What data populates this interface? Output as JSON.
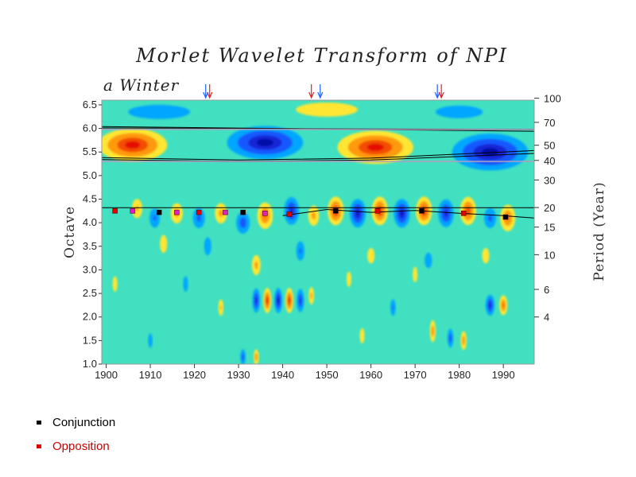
{
  "chart_data": {
    "type": "heatmap",
    "title": "Morlet Wavelet Transform of NPI",
    "subtitle": "a Winter",
    "xlabel": "",
    "ylabel": "Octave",
    "y2label": "Period (Year)",
    "xlim": [
      1899,
      1997
    ],
    "ylim": [
      1.0,
      6.6
    ],
    "x_ticks": [
      1900,
      1910,
      1920,
      1930,
      1940,
      1950,
      1960,
      1970,
      1980,
      1990
    ],
    "y_ticks": [
      1.0,
      1.5,
      2.0,
      2.5,
      3.0,
      3.5,
      4.0,
      4.5,
      5.0,
      5.5,
      6.0,
      6.5
    ],
    "y_tick_labels": [
      "1.0",
      "1.5",
      "2.0",
      "2.5",
      "3.0",
      "3.5",
      "4.0",
      "4.5",
      "5.0",
      "5.5",
      "6.0",
      "6.5"
    ],
    "period_ticks": [
      4,
      6,
      10,
      15,
      20,
      30,
      40,
      50,
      70,
      100
    ],
    "period_tick_labels": [
      "4",
      "6",
      "10",
      "15",
      "20",
      "30",
      "40",
      "50",
      "70",
      "100"
    ],
    "colormap": [
      "#00009a",
      "#1f3fff",
      "#00c0ff",
      "#7fffbf",
      "#ffff40",
      "#ff8000",
      "#e00000"
    ],
    "positive_color": "#e00000",
    "negative_color": "#1f3fff",
    "background_color": "#40e0c0",
    "top_arrows": [
      {
        "year": 1923,
        "colors": [
          "#2060ff",
          "#e02020"
        ]
      },
      {
        "year": 1946.5,
        "colors": [
          "#e02020"
        ]
      },
      {
        "year": 1948.5,
        "colors": [
          "#2060ff"
        ]
      },
      {
        "year": 1975.5,
        "colors": [
          "#2060ff",
          "#e02020"
        ]
      }
    ],
    "markers": [
      {
        "year": 1902,
        "octave": 4.25,
        "type": "opposition"
      },
      {
        "year": 1906,
        "octave": 4.25,
        "type": "opposition-magenta"
      },
      {
        "year": 1912,
        "octave": 4.22,
        "type": "conjunction"
      },
      {
        "year": 1916,
        "octave": 4.22,
        "type": "opposition-magenta"
      },
      {
        "year": 1921,
        "octave": 4.22,
        "type": "opposition"
      },
      {
        "year": 1927,
        "octave": 4.22,
        "type": "opposition-magenta"
      },
      {
        "year": 1931,
        "octave": 4.22,
        "type": "conjunction"
      },
      {
        "year": 1936,
        "octave": 4.2,
        "type": "opposition-magenta"
      },
      {
        "year": 1941.5,
        "octave": 4.18,
        "type": "opposition"
      },
      {
        "year": 1952,
        "octave": 4.25,
        "type": "conjunction"
      },
      {
        "year": 1961.5,
        "octave": 4.25,
        "type": "opposition"
      },
      {
        "year": 1971.5,
        "octave": 4.25,
        "type": "conjunction"
      },
      {
        "year": 1981,
        "octave": 4.2,
        "type": "opposition"
      },
      {
        "year": 1990.5,
        "octave": 4.12,
        "type": "conjunction"
      }
    ],
    "blobs": [
      {
        "x": 1906,
        "y": 5.65,
        "rx": 10,
        "ry": 0.45,
        "v": 1.0
      },
      {
        "x": 1936,
        "y": 5.7,
        "rx": 11,
        "ry": 0.45,
        "v": -1.0
      },
      {
        "x": 1961,
        "y": 5.6,
        "rx": 11,
        "ry": 0.45,
        "v": 1.0
      },
      {
        "x": 1987,
        "y": 5.5,
        "rx": 11,
        "ry": 0.5,
        "v": -1.0
      },
      {
        "x": 1912,
        "y": 6.35,
        "rx": 14,
        "ry": 0.3,
        "v": -0.35
      },
      {
        "x": 1950,
        "y": 6.4,
        "rx": 14,
        "ry": 0.3,
        "v": 0.35
      },
      {
        "x": 1980,
        "y": 6.35,
        "rx": 12,
        "ry": 0.3,
        "v": -0.3
      },
      {
        "x": 1907,
        "y": 4.3,
        "rx": 2.0,
        "ry": 0.35,
        "v": 0.45
      },
      {
        "x": 1911,
        "y": 4.1,
        "rx": 2.0,
        "ry": 0.35,
        "v": -0.45
      },
      {
        "x": 1916,
        "y": 4.2,
        "rx": 2.2,
        "ry": 0.35,
        "v": 0.5
      },
      {
        "x": 1921,
        "y": 4.1,
        "rx": 2.2,
        "ry": 0.35,
        "v": -0.5
      },
      {
        "x": 1926,
        "y": 4.2,
        "rx": 2.2,
        "ry": 0.35,
        "v": 0.5
      },
      {
        "x": 1931,
        "y": 4.0,
        "rx": 2.3,
        "ry": 0.35,
        "v": -0.6
      },
      {
        "x": 1936,
        "y": 4.15,
        "rx": 2.5,
        "ry": 0.4,
        "v": 0.7
      },
      {
        "x": 1942,
        "y": 4.25,
        "rx": 2.3,
        "ry": 0.4,
        "v": -0.8
      },
      {
        "x": 1947,
        "y": 4.15,
        "rx": 2.0,
        "ry": 0.35,
        "v": 0.5
      },
      {
        "x": 1952,
        "y": 4.25,
        "rx": 2.4,
        "ry": 0.4,
        "v": 0.9
      },
      {
        "x": 1957,
        "y": 4.2,
        "rx": 2.4,
        "ry": 0.4,
        "v": -0.9
      },
      {
        "x": 1962,
        "y": 4.25,
        "rx": 2.4,
        "ry": 0.4,
        "v": 0.9
      },
      {
        "x": 1967,
        "y": 4.2,
        "rx": 2.4,
        "ry": 0.4,
        "v": -0.9
      },
      {
        "x": 1972,
        "y": 4.25,
        "rx": 2.4,
        "ry": 0.4,
        "v": 0.9
      },
      {
        "x": 1977,
        "y": 4.2,
        "rx": 2.4,
        "ry": 0.4,
        "v": -0.8
      },
      {
        "x": 1982,
        "y": 4.25,
        "rx": 2.4,
        "ry": 0.4,
        "v": 0.85
      },
      {
        "x": 1987,
        "y": 4.1,
        "rx": 2.2,
        "ry": 0.35,
        "v": -0.5
      },
      {
        "x": 1991,
        "y": 4.1,
        "rx": 2.4,
        "ry": 0.4,
        "v": 0.7
      },
      {
        "x": 1913,
        "y": 3.55,
        "rx": 1.5,
        "ry": 0.35,
        "v": 0.4
      },
      {
        "x": 1923,
        "y": 3.5,
        "rx": 1.5,
        "ry": 0.35,
        "v": -0.4
      },
      {
        "x": 1934,
        "y": 3.1,
        "rx": 1.6,
        "ry": 0.35,
        "v": 0.5
      },
      {
        "x": 1944,
        "y": 3.4,
        "rx": 1.6,
        "ry": 0.35,
        "v": -0.45
      },
      {
        "x": 1960,
        "y": 3.3,
        "rx": 1.5,
        "ry": 0.3,
        "v": 0.4
      },
      {
        "x": 1973,
        "y": 3.2,
        "rx": 1.5,
        "ry": 0.3,
        "v": -0.4
      },
      {
        "x": 1986,
        "y": 3.3,
        "rx": 1.5,
        "ry": 0.3,
        "v": 0.4
      },
      {
        "x": 1934,
        "y": 2.35,
        "rx": 1.2,
        "ry": 0.35,
        "v": -0.8
      },
      {
        "x": 1936.5,
        "y": 2.35,
        "rx": 1.2,
        "ry": 0.35,
        "v": 0.9
      },
      {
        "x": 1939,
        "y": 2.35,
        "rx": 1.2,
        "ry": 0.35,
        "v": -0.9
      },
      {
        "x": 1941.5,
        "y": 2.35,
        "rx": 1.2,
        "ry": 0.35,
        "v": 0.9
      },
      {
        "x": 1944,
        "y": 2.35,
        "rx": 1.2,
        "ry": 0.35,
        "v": -0.7
      },
      {
        "x": 1946.5,
        "y": 2.45,
        "rx": 1.0,
        "ry": 0.3,
        "v": 0.5
      },
      {
        "x": 1987,
        "y": 2.25,
        "rx": 1.4,
        "ry": 0.3,
        "v": -0.8
      },
      {
        "x": 1990,
        "y": 2.25,
        "rx": 1.3,
        "ry": 0.3,
        "v": 0.7
      },
      {
        "x": 1974,
        "y": 1.7,
        "rx": 1.0,
        "ry": 0.35,
        "v": 0.6
      },
      {
        "x": 1978,
        "y": 1.55,
        "rx": 1.0,
        "ry": 0.3,
        "v": -0.6
      },
      {
        "x": 1981,
        "y": 1.5,
        "rx": 1.0,
        "ry": 0.3,
        "v": 0.6
      },
      {
        "x": 1931,
        "y": 1.15,
        "rx": 0.9,
        "ry": 0.25,
        "v": -0.6
      },
      {
        "x": 1934,
        "y": 1.15,
        "rx": 0.9,
        "ry": 0.25,
        "v": 0.6
      },
      {
        "x": 1902,
        "y": 2.7,
        "rx": 1.0,
        "ry": 0.3,
        "v": 0.4
      },
      {
        "x": 1918,
        "y": 2.7,
        "rx": 1.0,
        "ry": 0.3,
        "v": -0.4
      },
      {
        "x": 1926,
        "y": 2.2,
        "rx": 1.0,
        "ry": 0.3,
        "v": 0.45
      },
      {
        "x": 1955,
        "y": 2.8,
        "rx": 1.0,
        "ry": 0.3,
        "v": 0.4
      },
      {
        "x": 1965,
        "y": 2.2,
        "rx": 1.0,
        "ry": 0.3,
        "v": -0.45
      },
      {
        "x": 1970,
        "y": 2.9,
        "rx": 1.0,
        "ry": 0.3,
        "v": 0.4
      },
      {
        "x": 1958,
        "y": 1.6,
        "rx": 1.0,
        "ry": 0.3,
        "v": 0.4
      },
      {
        "x": 1910,
        "y": 1.5,
        "rx": 1.0,
        "ry": 0.3,
        "v": -0.35
      }
    ],
    "ridge_lines": [
      {
        "x": [
          1899,
          1997
        ],
        "y": [
          6.01,
          5.98
        ]
      },
      {
        "x": [
          1899,
          1997
        ],
        "y": [
          6.04,
          5.94
        ]
      },
      {
        "x": [
          1899,
          1930,
          1960,
          1997
        ],
        "y": [
          5.38,
          5.33,
          5.37,
          5.53
        ]
      },
      {
        "x": [
          1899,
          1930,
          1960,
          1997
        ],
        "y": [
          5.34,
          5.3,
          5.33,
          5.47
        ]
      },
      {
        "x": [
          1899,
          1997
        ],
        "y": [
          4.32,
          4.32
        ]
      },
      {
        "x": [
          1940,
          1950,
          1960,
          1970,
          1980,
          1990,
          1997
        ],
        "y": [
          4.15,
          4.28,
          4.22,
          4.26,
          4.2,
          4.15,
          4.1
        ]
      }
    ]
  },
  "legend": {
    "items": [
      {
        "label": "Conjunction",
        "color": "#000000",
        "text_color": "#000000"
      },
      {
        "label": "Opposition",
        "color": "#e00000",
        "text_color": "#cc0000"
      }
    ]
  }
}
